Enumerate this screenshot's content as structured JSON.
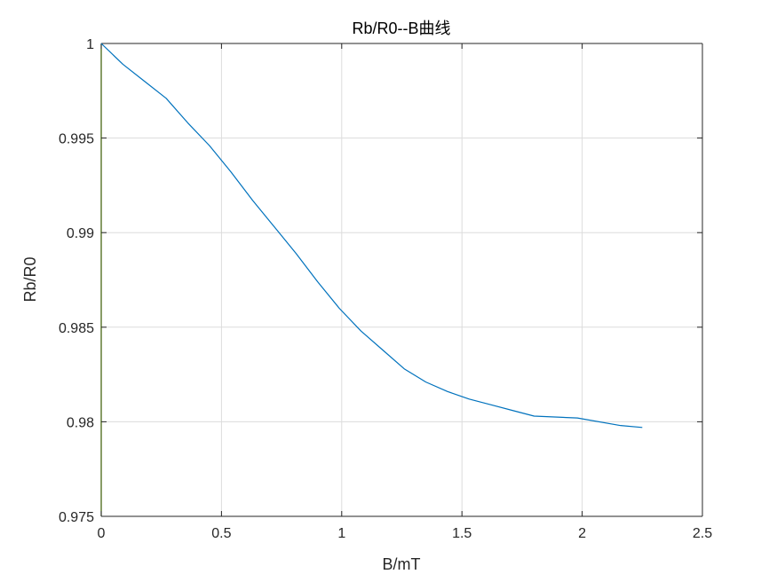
{
  "chart_data": {
    "type": "line",
    "title": "Rb/R0--B曲线",
    "xlabel": "B/mT",
    "ylabel": "Rb/R0",
    "xlim": [
      0,
      2.5
    ],
    "ylim": [
      0.975,
      1.0
    ],
    "xticks": [
      0,
      0.5,
      1,
      1.5,
      2,
      2.5
    ],
    "xtick_labels": [
      "0",
      "0.5",
      "1",
      "1.5",
      "2",
      "2.5"
    ],
    "yticks": [
      0.975,
      0.98,
      0.985,
      0.99,
      0.995,
      1.0
    ],
    "ytick_labels": [
      "0.975",
      "0.98",
      "0.985",
      "0.99",
      "0.995",
      "1"
    ],
    "grid": true,
    "series": [
      {
        "color": "#0072BD",
        "x": [
          0,
          0.09,
          0.18,
          0.27,
          0.36,
          0.45,
          0.54,
          0.63,
          0.72,
          0.81,
          0.9,
          0.99,
          1.08,
          1.17,
          1.26,
          1.35,
          1.44,
          1.53,
          1.62,
          1.71,
          1.8,
          1.98,
          2.16,
          2.25
        ],
        "y": [
          1.0,
          0.9989,
          0.998,
          0.9971,
          0.9958,
          0.9946,
          0.9932,
          0.9917,
          0.9903,
          0.9889,
          0.9874,
          0.986,
          0.9848,
          0.9838,
          0.9828,
          0.9821,
          0.9816,
          0.9812,
          0.9809,
          0.9806,
          0.9803,
          0.9802,
          0.9798,
          0.9797
        ]
      }
    ],
    "left_axis_color": "#3a5a00"
  }
}
